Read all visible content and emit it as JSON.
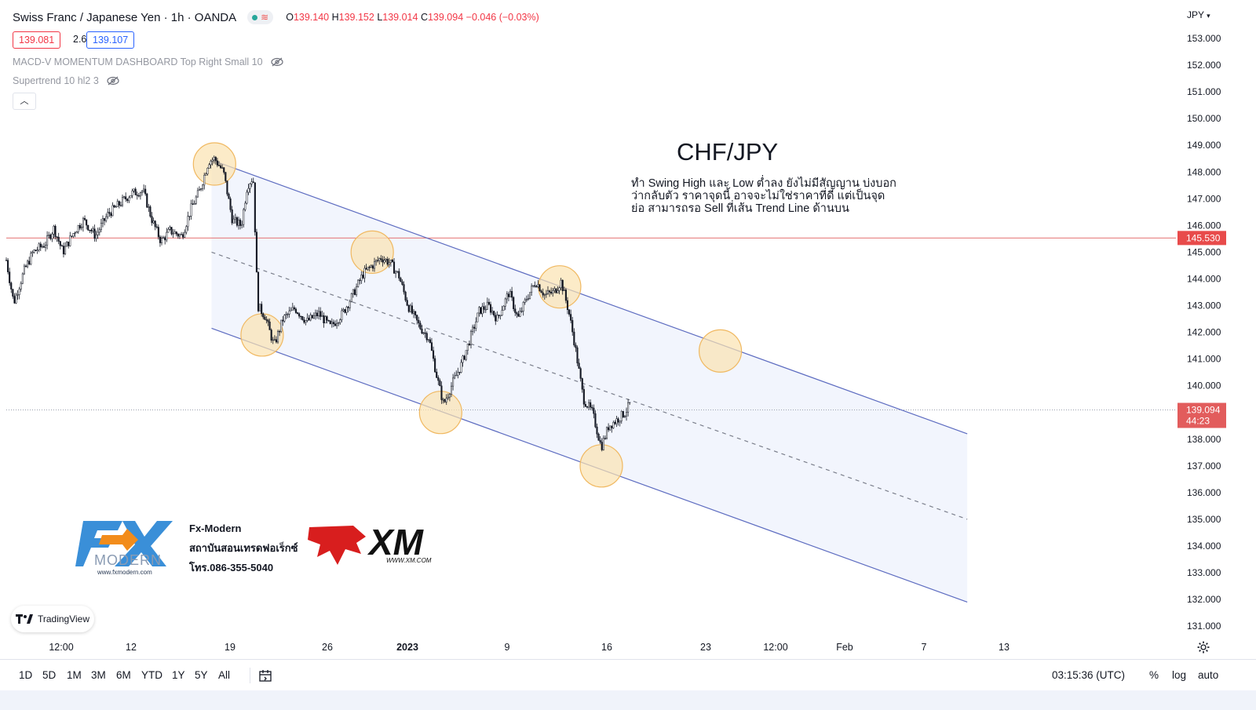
{
  "header": {
    "title": "Swiss Franc / Japanese Yen · 1h · OANDA",
    "ohlc": {
      "o_label": "O",
      "o": "139.140",
      "h_label": "H",
      "h": "139.152",
      "l_label": "L",
      "l": "139.014",
      "c_label": "C",
      "c": "139.094",
      "change": "−0.046 (−0.03%)"
    },
    "bid": "139.081",
    "spread": "2.6",
    "ask": "139.107"
  },
  "indicators": [
    {
      "label": "MACD-V MOMENTUM DASHBOARD Top Right Small 10"
    },
    {
      "label": "Supertrend 10 hl2 3"
    }
  ],
  "currency": "JPY",
  "annotation": {
    "title": "CHF/JPY",
    "note": "ทำ Swing High และ Low ต่ำลง ยังไม่มีสัญญาน บ่งบอกว่ากลับตัว ราคาจุดนี้ อาจจะไม่ใช่ราคาที่ดี แต่เป็นจุดย่อ สามารถรอ Sell ที่เส้น Trend Line ด้านบน"
  },
  "logos": {
    "fx_name": "Fx-Modern",
    "fx_line2": "สถาบันสอนเทรดฟอเร็กซ์",
    "fx_phone": "โทร.086-355-5040",
    "fx_brand": "FX",
    "fx_sub": "MODERN",
    "fx_url": "www.fxmodern.com",
    "xm_brand": "XM",
    "xm_url": "WWW.XM.COM",
    "tradingview": "TradingView"
  },
  "timeframes": [
    "1D",
    "5D",
    "1M",
    "3M",
    "6M",
    "YTD",
    "1Y",
    "5Y",
    "All"
  ],
  "status": {
    "clock": "03:15:36 (UTC)",
    "percent": "%",
    "log": "log",
    "auto": "auto"
  },
  "colors": {
    "down": "#f23645",
    "channel": "#5c6bc0",
    "circle_fill": "#fbe3b0",
    "circle_stroke": "#f0b860",
    "candle": "#131722",
    "hline": "#e57373"
  },
  "chart_data": {
    "type": "candlestick",
    "symbol": "CHF/JPY",
    "interval": "1h",
    "y_ticks": [
      "153.000",
      "152.000",
      "151.000",
      "150.000",
      "149.000",
      "148.000",
      "147.000",
      "146.000",
      "145.000",
      "144.000",
      "143.000",
      "142.000",
      "141.000",
      "140.000",
      "139.000",
      "138.000",
      "137.000",
      "136.000",
      "135.000",
      "134.000",
      "133.000",
      "132.000",
      "131.000"
    ],
    "ylim": [
      130.5,
      153.6
    ],
    "x_ticks": [
      "12:00",
      "12",
      "19",
      "26",
      "2023",
      "9",
      "16",
      "23",
      "12:00",
      "Feb",
      "7",
      "13"
    ],
    "price_path": [
      [
        0,
        144.7
      ],
      [
        0.25,
        143.1
      ],
      [
        0.6,
        144.3
      ],
      [
        0.9,
        145.0
      ],
      [
        1.3,
        145.3
      ],
      [
        1.6,
        145.9
      ],
      [
        1.9,
        145.0
      ],
      [
        2.3,
        145.8
      ],
      [
        2.6,
        146.2
      ],
      [
        3.0,
        145.6
      ],
      [
        3.4,
        146.4
      ],
      [
        3.8,
        146.8
      ],
      [
        4.2,
        147.2
      ],
      [
        4.6,
        147.3
      ],
      [
        4.9,
        146.2
      ],
      [
        5.2,
        145.4
      ],
      [
        5.5,
        145.8
      ],
      [
        5.9,
        145.6
      ],
      [
        6.2,
        146.6
      ],
      [
        6.5,
        147.3
      ],
      [
        6.8,
        148.4
      ],
      [
        7.0,
        148.5
      ],
      [
        7.3,
        148.0
      ],
      [
        7.6,
        146.2
      ],
      [
        7.9,
        146.0
      ],
      [
        8.1,
        147.5
      ],
      [
        8.3,
        147.8
      ],
      [
        8.45,
        143.0
      ],
      [
        8.7,
        142.6
      ],
      [
        9.0,
        141.5
      ],
      [
        9.3,
        142.5
      ],
      [
        9.7,
        142.9
      ],
      [
        10.1,
        142.4
      ],
      [
        10.5,
        142.7
      ],
      [
        10.9,
        142.2
      ],
      [
        11.3,
        142.7
      ],
      [
        11.6,
        143.3
      ],
      [
        12.0,
        144.2
      ],
      [
        12.3,
        144.5
      ],
      [
        12.6,
        144.8
      ],
      [
        12.9,
        144.6
      ],
      [
        13.2,
        144.1
      ],
      [
        13.5,
        143.0
      ],
      [
        13.9,
        142.2
      ],
      [
        14.2,
        141.8
      ],
      [
        14.5,
        140.2
      ],
      [
        14.7,
        139.3
      ],
      [
        15.0,
        140.1
      ],
      [
        15.3,
        140.8
      ],
      [
        15.6,
        141.8
      ],
      [
        15.9,
        142.8
      ],
      [
        16.2,
        143.0
      ],
      [
        16.5,
        142.5
      ],
      [
        16.9,
        143.5
      ],
      [
        17.2,
        142.5
      ],
      [
        17.5,
        143.3
      ],
      [
        17.8,
        143.9
      ],
      [
        18.1,
        143.4
      ],
      [
        18.4,
        143.5
      ],
      [
        18.65,
        143.9
      ],
      [
        18.9,
        142.8
      ],
      [
        19.1,
        141.6
      ],
      [
        19.4,
        139.5
      ],
      [
        19.7,
        139.0
      ],
      [
        20.0,
        137.7
      ],
      [
        20.25,
        138.5
      ],
      [
        20.5,
        138.7
      ],
      [
        20.8,
        139.0
      ],
      [
        21.0,
        139.4
      ]
    ],
    "last_price": "139.094",
    "countdown": "44:23",
    "level_line": {
      "price": 145.53,
      "label": "145.530"
    },
    "channel": {
      "upper": [
        [
          6.9,
          148.45
        ],
        [
          32.3,
          138.2
        ]
      ],
      "middle": [
        [
          6.9,
          145.0
        ],
        [
          32.3,
          135.0
        ]
      ],
      "lower": [
        [
          6.9,
          142.15
        ],
        [
          32.3,
          131.9
        ]
      ]
    },
    "swing_circles": [
      [
        7.0,
        148.3
      ],
      [
        8.6,
        141.9
      ],
      [
        12.3,
        145.0
      ],
      [
        14.6,
        139.0
      ],
      [
        18.6,
        143.7
      ],
      [
        20.0,
        137.0
      ],
      [
        24.0,
        141.3
      ]
    ]
  }
}
